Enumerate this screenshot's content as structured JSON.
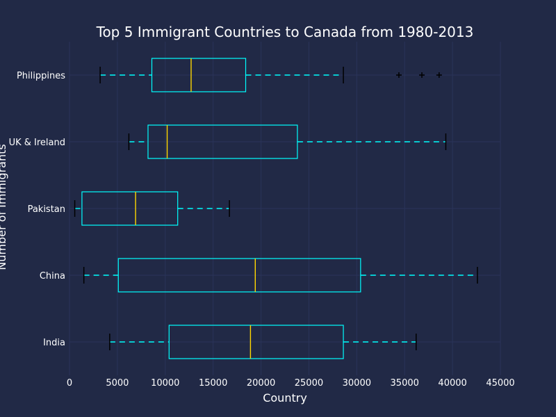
{
  "chart_data": {
    "type": "boxplot",
    "orientation": "horizontal",
    "title": "Top 5 Immigrant Countries to Canada from 1980-2013",
    "xlabel": "Country",
    "ylabel": "Number of Immigrants",
    "xlim": [
      0,
      45000
    ],
    "xticks": [
      0,
      5000,
      10000,
      15000,
      20000,
      25000,
      30000,
      35000,
      40000,
      45000
    ],
    "grid": true,
    "categories": [
      "India",
      "China",
      "Pakistan",
      "UK & Ireland",
      "Philippines"
    ],
    "boxes": [
      {
        "label": "India",
        "whislo": 4200,
        "q1": 10400,
        "med": 18900,
        "q3": 28600,
        "whishi": 36200,
        "fliers": []
      },
      {
        "label": "China",
        "whislo": 1500,
        "q1": 5100,
        "med": 19400,
        "q3": 30400,
        "whishi": 42600,
        "fliers": []
      },
      {
        "label": "Pakistan",
        "whislo": 550,
        "q1": 1300,
        "med": 6900,
        "q3": 11300,
        "whishi": 16700,
        "fliers": []
      },
      {
        "label": "UK & Ireland",
        "whislo": 6200,
        "q1": 8200,
        "med": 10200,
        "q3": 23800,
        "whishi": 39300,
        "fliers": []
      },
      {
        "label": "Philippines",
        "whislo": 3200,
        "q1": 8600,
        "med": 12700,
        "q3": 18400,
        "whishi": 28600,
        "fliers": [
          34400,
          36800,
          38600
        ]
      }
    ],
    "colors": {
      "background": "#212946",
      "grid": "#2A3459",
      "box": "#00ffff",
      "median": "#ffd700",
      "caps": "#000000",
      "text": "#ffffff"
    }
  }
}
